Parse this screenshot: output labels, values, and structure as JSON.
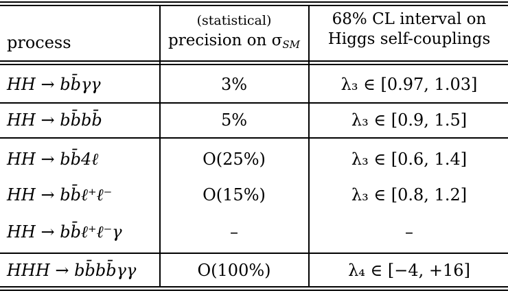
{
  "header": {
    "process": "process",
    "precision_line1": "(statistical)",
    "precision_line2": "precision on σ",
    "precision_sub": "SM",
    "interval_line1": "68% CL interval on",
    "interval_line2": "Higgs self-couplings"
  },
  "rows": [
    {
      "process": "HH → bb̄γγ",
      "precision": "3%",
      "interval": "λ₃ ∈ [0.97, 1.03]"
    },
    {
      "process": "HH → bb̄bb̄",
      "precision": "5%",
      "interval": "λ₃ ∈ [0.9, 1.5]"
    },
    {
      "process": "HH → bb̄4ℓ",
      "precision": "O(25%)",
      "interval": "λ₃ ∈ [0.6, 1.4]"
    },
    {
      "process": "HH → bb̄ℓ⁺ℓ⁻",
      "precision": "O(15%)",
      "interval": "λ₃ ∈ [0.8, 1.2]"
    },
    {
      "process": "HH → bb̄ℓ⁺ℓ⁻γ",
      "precision": "–",
      "interval": "–"
    },
    {
      "process": "HHH → bb̄bb̄γγ",
      "precision": "O(100%)",
      "interval": "λ₄ ∈ [−4, +16]"
    }
  ]
}
